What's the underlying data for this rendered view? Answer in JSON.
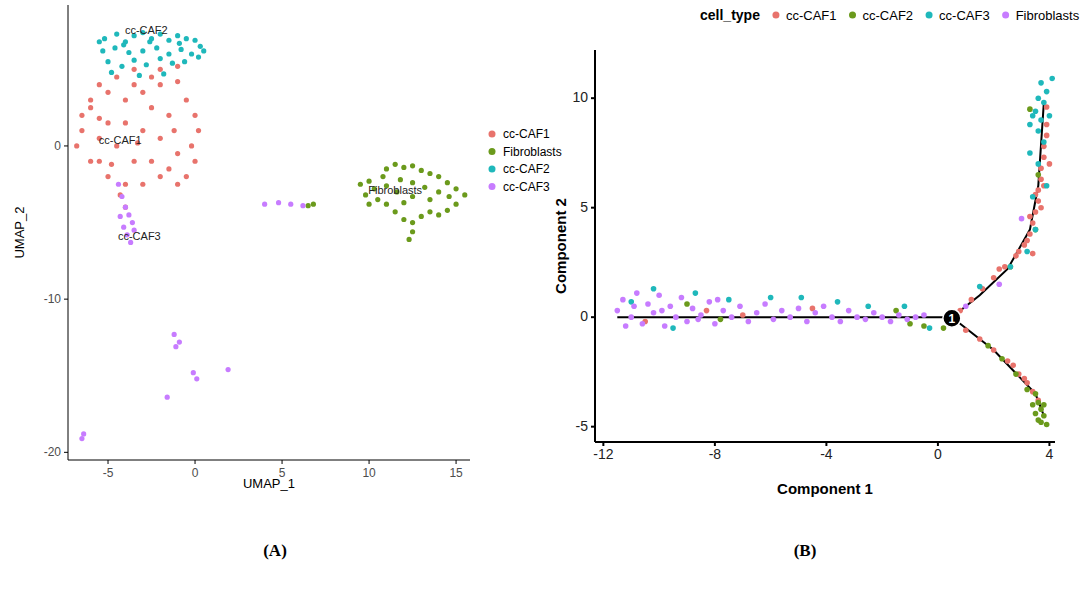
{
  "chart_data": [
    {
      "type": "scatter",
      "panel_label": "(A)",
      "x_label": "UMAP_1",
      "y_label": "UMAP_2",
      "xlim": [
        -7.3,
        15.8
      ],
      "ylim": [
        -20.5,
        9.2
      ],
      "xticks": [
        -5,
        0,
        5,
        10,
        15
      ],
      "yticks": [
        -20,
        -10,
        0
      ],
      "legend": "right",
      "marker": "circle",
      "annotations": [
        {
          "text": "cc-CAF2",
          "x": -2.8,
          "y": 7.6
        },
        {
          "text": "cc-CAF1",
          "x": -4.3,
          "y": 0.4
        },
        {
          "text": "cc-CAF3",
          "x": -3.2,
          "y": -5.9
        },
        {
          "text": "Fibroblasts",
          "x": 11.5,
          "y": -2.9
        }
      ],
      "series": [
        {
          "name": "cc-CAF1",
          "color": "#e8736c",
          "x": [
            -6.5,
            -6,
            -5.5,
            -5,
            -4.5,
            -4,
            -3.5,
            -3,
            -2.5,
            -2,
            -1,
            -0.5,
            0,
            0.2,
            -0.2,
            0,
            -0.5,
            -1,
            -2,
            -3,
            -4,
            -5,
            -6,
            -6.8,
            -6.5,
            -5.5,
            -5,
            -4.5,
            -4,
            -3.5,
            -3,
            -2.5,
            -2,
            -1.5,
            -1,
            -1.5,
            -2.5,
            -5.5,
            -6,
            -4,
            -4.3,
            -3.5,
            -2,
            -1,
            -5.5,
            -3.3,
            -1.2,
            -4.8
          ],
          "values": [
            2,
            3,
            4,
            3.5,
            4.5,
            3,
            4,
            3.5,
            4.5,
            4,
            4.2,
            3,
            2,
            1,
            0,
            -1,
            -2,
            -2.5,
            -2,
            -2.5,
            -2.5,
            -2,
            -1,
            0,
            1,
            0.5,
            1.5,
            0,
            1.5,
            -1,
            1,
            2.5,
            0.5,
            2,
            -0.5,
            -1.5,
            -1,
            -1,
            2.5,
            -4,
            -3.2,
            5,
            5,
            5.2,
            1.8,
            0.2,
            1,
            -1.2
          ]
        },
        {
          "name": "Fibroblasts",
          "color": "#6b9a1c",
          "x": [
            9.5,
            9.8,
            10,
            10.3,
            10.8,
            11,
            11.5,
            12,
            12.5,
            13,
            13.5,
            14,
            14.5,
            15,
            15.5,
            15,
            14.5,
            14,
            13.5,
            13,
            12.5,
            12.5,
            12.3,
            12,
            11.5,
            11,
            10.5,
            11,
            11.8,
            12.5,
            13.2,
            14,
            14.6,
            13.5,
            12.5,
            12,
            11.6,
            10,
            6.5,
            6.8
          ],
          "values": [
            -2.5,
            -3.2,
            -3.8,
            -2.8,
            -2,
            -1.5,
            -1.2,
            -1.4,
            -1.3,
            -1.6,
            -1.8,
            -2,
            -2.4,
            -2.8,
            -3.2,
            -3.8,
            -4.2,
            -4.5,
            -4.3,
            -4.6,
            -5,
            -5.6,
            -6.1,
            -4.8,
            -4.3,
            -3.8,
            -3.5,
            -2.6,
            -2.2,
            -2.4,
            -2.7,
            -3,
            -3.3,
            -3.5,
            -3.3,
            -3.7,
            -3,
            -2.3,
            -3.9,
            -3.8
          ]
        },
        {
          "name": "cc-CAF2",
          "color": "#1fb8bb",
          "x": [
            -5.2,
            -4.5,
            -4,
            -3.5,
            -3,
            -2.5,
            -2,
            -1.5,
            -1,
            -0.5,
            0,
            0.3,
            -0.2,
            -0.8,
            -1.5,
            -2.2,
            -3,
            -3.8,
            -4.6,
            -5.3,
            -5,
            -4.2,
            -3.5,
            -2.8,
            -2,
            -1.3,
            -0.6,
            0.2,
            -4.8,
            -3.2,
            -1.8,
            -2.6,
            -4.1,
            -0.9,
            -5.5,
            0.5
          ],
          "values": [
            7,
            7.3,
            6.8,
            7.2,
            7.4,
            7,
            7.3,
            6.9,
            7.2,
            7,
            6.9,
            6.5,
            6,
            6.3,
            6,
            6.4,
            6.2,
            6.1,
            6.4,
            6.2,
            5.5,
            5.2,
            5.6,
            5.3,
            5.7,
            5.4,
            5.5,
            5.8,
            4.8,
            4.6,
            4.7,
            6.8,
            6.6,
            6.7,
            6.8,
            6.2
          ]
        },
        {
          "name": "cc-CAF3",
          "color": "#c77cff",
          "x": [
            -4.4,
            -4.2,
            -4,
            -3.8,
            -3.6,
            -4.1,
            -3.9,
            -3.7,
            -4.3,
            -3.5,
            -1.2,
            -0.9,
            -1.1,
            -0.1,
            0.1,
            1.9,
            -1.6,
            -6.4,
            -6.5,
            4,
            4.8,
            5.5,
            6.2
          ],
          "values": [
            -2.5,
            -3.3,
            -4,
            -4.5,
            -5,
            -5.3,
            -5.8,
            -6.3,
            -4.6,
            -5.5,
            -12.3,
            -12.8,
            -13.1,
            -14.8,
            -15.2,
            -14.6,
            -16.4,
            -18.8,
            -19.1,
            -3.8,
            -3.7,
            -3.8,
            -3.9
          ]
        }
      ]
    },
    {
      "type": "scatter",
      "panel_label": "(B)",
      "x_label": "Component 1",
      "y_label": "Component 2",
      "xlim": [
        -12.3,
        4.2
      ],
      "ylim": [
        -5.7,
        12.2
      ],
      "xticks": [
        -12,
        -8,
        -4,
        0,
        4
      ],
      "yticks": [
        -5,
        0,
        5,
        10
      ],
      "legend": "top",
      "legend_title": "cell_type",
      "marker": "circle",
      "trajectory": [
        {
          "x": [
            -11.5,
            0.5
          ],
          "y": [
            0,
            0
          ]
        },
        {
          "x": [
            0.5,
            1.5,
            2.5,
            3.3,
            3.6,
            3.8
          ],
          "y": [
            0,
            1,
            2.2,
            4,
            6,
            9.8
          ]
        },
        {
          "x": [
            0.5,
            2,
            3.5,
            3.8
          ],
          "y": [
            0,
            -1.5,
            -3.5,
            -4.5
          ]
        }
      ],
      "node": {
        "x": 0.5,
        "y": -0.05,
        "label": "1"
      },
      "series": [
        {
          "name": "cc-CAF1",
          "color": "#e8736c",
          "x": [
            0.8,
            1.2,
            1.6,
            2,
            2.4,
            2.8,
            3.1,
            3.3,
            3.4,
            3.5,
            3.6,
            3.6,
            3.7,
            3.7,
            3.8,
            3.8,
            3.9,
            3.9,
            3.9,
            3.3,
            3.5,
            3.2,
            2.9,
            3.7,
            3.8,
            4,
            3.4,
            2.2,
            1,
            1.5,
            2,
            2.5,
            2.9,
            3.2,
            3.4,
            3.6,
            2.7,
            3.1,
            -10.5,
            -7,
            -4.5,
            -8.3
          ],
          "values": [
            0.3,
            0.8,
            1.3,
            1.8,
            2.3,
            2.8,
            3.3,
            3.8,
            4.3,
            4.8,
            5.3,
            5.8,
            6.3,
            6.8,
            7.3,
            7.8,
            8.3,
            8.8,
            9.6,
            4.6,
            5.6,
            3.5,
            3,
            5,
            6,
            7,
            2.9,
            2.2,
            -0.6,
            -1,
            -1.5,
            -2,
            -2.6,
            -3,
            -3.4,
            -3.8,
            -2.2,
            -2.8,
            -0.2,
            0.1,
            0.4,
            0.3
          ]
        },
        {
          "name": "cc-CAF2",
          "color": "#6b9a1c",
          "x": [
            3.5,
            3.6,
            3.7,
            3.8,
            3.6,
            3.9,
            3.4,
            3.2,
            2.8,
            2.3,
            1.8,
            3.7,
            3.5,
            3.8,
            3.5,
            3.6,
            2.6,
            3.3,
            -0.5,
            -1,
            0.2,
            -1.5,
            -9,
            -7.8
          ],
          "values": [
            -3.5,
            -3.9,
            -4.2,
            -4.5,
            -4.7,
            -4.9,
            -4,
            -3.3,
            -2.6,
            -1.9,
            -1.3,
            -4.8,
            -4.4,
            -4,
            4,
            6.5,
            2.3,
            9.5,
            -0.4,
            -0.3,
            -0.5,
            0.3,
            0.6,
            -0.1
          ]
        },
        {
          "name": "cc-CAF3",
          "color": "#1fb8bb",
          "x": [
            3.7,
            3.9,
            3.6,
            3.8,
            3.5,
            4,
            3.7,
            3.4,
            3.6,
            3.8,
            3.3,
            3.6,
            3.9,
            3.4,
            3.5,
            3.2,
            2.6,
            4.1,
            3.3,
            -11,
            -10.2,
            -9.5,
            -8.7,
            -7.5,
            -6,
            -4.9,
            -3.6,
            -2.5,
            -1.2,
            -0.3,
            1.5
          ],
          "values": [
            10.7,
            10.3,
            10,
            9.8,
            9.4,
            9.2,
            9,
            9.2,
            8.5,
            8,
            7.5,
            7,
            6,
            5.5,
            4,
            3,
            2.3,
            10.9,
            8.8,
            0.7,
            1.3,
            -0.5,
            1.1,
            0.8,
            0.9,
            0.9,
            0.7,
            0.5,
            0.5,
            -0.5,
            1.4
          ]
        },
        {
          "name": "Fibroblasts",
          "color": "#c77cff",
          "x": [
            -11.5,
            -11.3,
            -11,
            -10.8,
            -10.6,
            -10.4,
            -10.2,
            -10,
            -9.8,
            -9.6,
            -9.4,
            -9.2,
            -9,
            -8.8,
            -8.5,
            -8.2,
            -8,
            -7.7,
            -7.4,
            -7.1,
            -6.8,
            -6.5,
            -6.2,
            -5.9,
            -5.6,
            -5.3,
            -5,
            -4.7,
            -4.4,
            -4.1,
            -3.8,
            -3.5,
            -3.2,
            -2.9,
            -2.6,
            -2.3,
            -2,
            -1.7,
            -1.4,
            -1.1,
            -0.8,
            -0.5,
            2.2,
            3,
            -10.9,
            -9.9,
            -8.6,
            -7.9,
            -11.2,
            0.6,
            1
          ],
          "values": [
            0.3,
            0.8,
            0,
            1.1,
            -0.3,
            0.6,
            0.2,
            1,
            -0.4,
            0.5,
            0,
            0.9,
            -0.2,
            0.4,
            0.1,
            0.7,
            -0.3,
            0.3,
            0,
            0.5,
            -0.2,
            0.2,
            0.6,
            -0.1,
            0.3,
            0,
            0.4,
            -0.2,
            0.2,
            0.5,
            0,
            -0.2,
            0.3,
            0,
            -0.1,
            0.2,
            0,
            -0.2,
            0.1,
            -0.1,
            0,
            0.1,
            1.5,
            4.5,
            0.5,
            0.3,
            -0.1,
            0.8,
            -0.4,
            0.2,
            0.5
          ]
        }
      ]
    }
  ]
}
